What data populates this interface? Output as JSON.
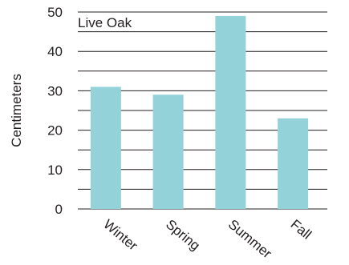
{
  "chart_data": {
    "type": "bar",
    "title": "Live Oak",
    "xlabel": "",
    "ylabel": "Centimeters",
    "categories": [
      "Winter",
      "Spring",
      "Summer",
      "Fall"
    ],
    "values": [
      31,
      29,
      49,
      23
    ],
    "ylim": [
      0,
      50
    ],
    "y_ticks": [
      0,
      10,
      20,
      30,
      40,
      50
    ],
    "grid_step": 5,
    "grid": true,
    "bar_color": "#93d2d9",
    "gridline_color": "#231f20"
  }
}
